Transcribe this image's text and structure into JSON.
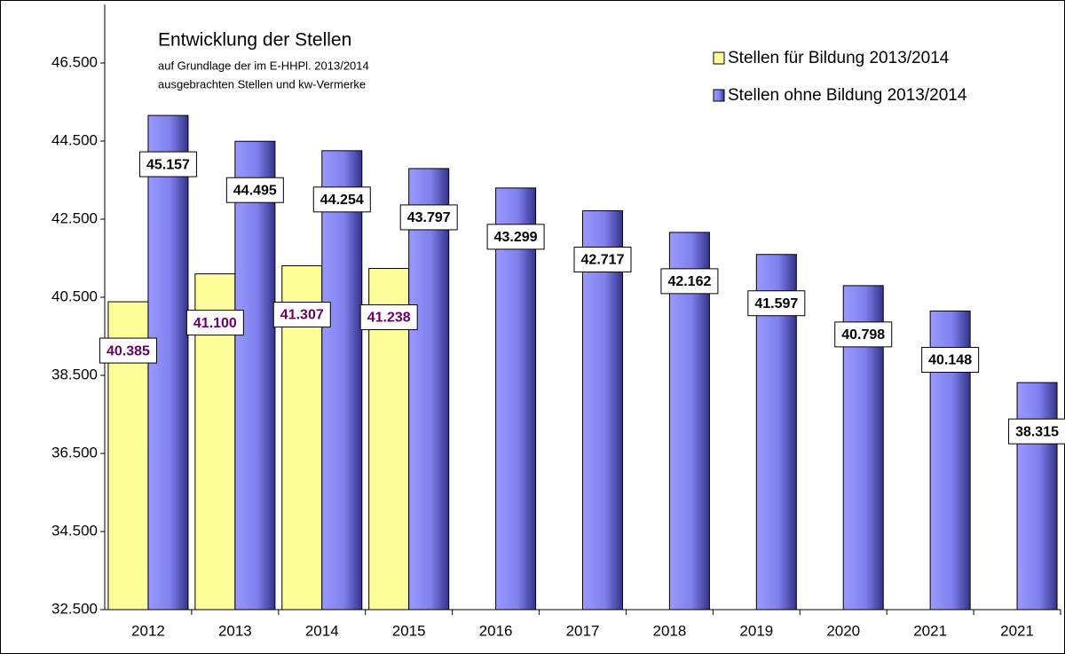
{
  "chart_data": {
    "type": "bar",
    "title": "Entwicklung der Stellen",
    "subtitle": [
      "auf Grundlage der im E-HHPl. 2013/2014",
      "ausgebrachten Stellen und kw-Vermerke"
    ],
    "categories": [
      "2012",
      "2013",
      "2014",
      "2015",
      "2016",
      "2017",
      "2018",
      "2019",
      "2020",
      "2021",
      "2021"
    ],
    "series": [
      {
        "name": "Stellen für Bildung 2013/2014",
        "color": "#ffff99",
        "label_color": "#660066",
        "values": [
          40385,
          41100,
          41307,
          41238,
          null,
          null,
          null,
          null,
          null,
          null,
          null
        ],
        "value_labels": [
          "40.385",
          "41.100",
          "41.307",
          "41.238",
          null,
          null,
          null,
          null,
          null,
          null,
          null
        ]
      },
      {
        "name": "Stellen ohne Bildung 2013/2014",
        "color": "#9999ff",
        "label_color": "#000000",
        "values": [
          45157,
          44495,
          44254,
          43797,
          43299,
          42717,
          42162,
          41597,
          40798,
          40148,
          38315
        ],
        "value_labels": [
          "45.157",
          "44.495",
          "44.254",
          "43.797",
          "43.299",
          "42.717",
          "42.162",
          "41.597",
          "40.798",
          "40.148",
          "38.315"
        ]
      }
    ],
    "ylim": [
      32500,
      48000
    ],
    "yticks": [
      {
        "value": 32500,
        "label": "32.500"
      },
      {
        "value": 34500,
        "label": "34.500"
      },
      {
        "value": 36500,
        "label": "36.500"
      },
      {
        "value": 38500,
        "label": "38.500"
      },
      {
        "value": 40500,
        "label": "40.500"
      },
      {
        "value": 42500,
        "label": "42.500"
      },
      {
        "value": 44500,
        "label": "44.500"
      },
      {
        "value": 46500,
        "label": "46.500"
      }
    ],
    "legend": "top-right"
  }
}
